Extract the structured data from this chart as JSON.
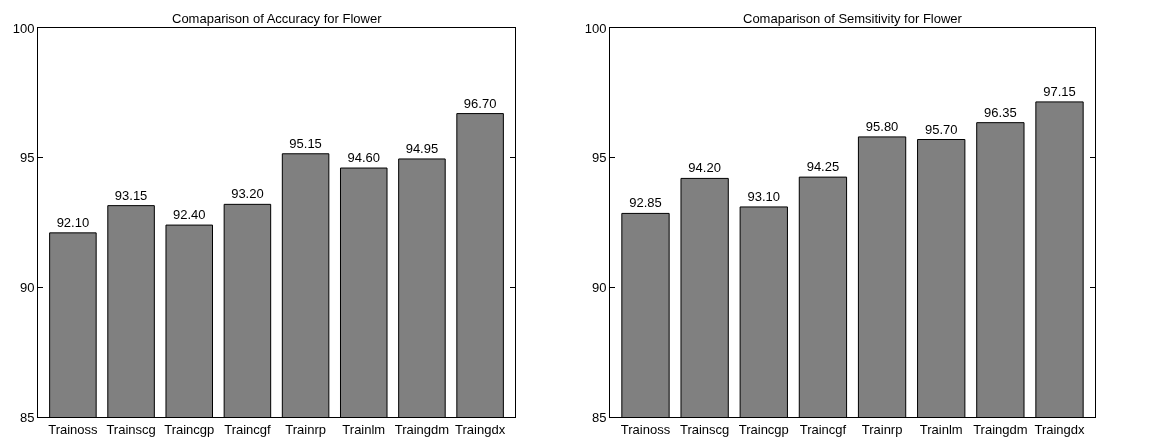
{
  "chart_data": [
    {
      "type": "bar",
      "title": "Comaparison of Accuracy for Flower",
      "categories": [
        "Trainoss",
        "Trainscg",
        "Traincgp",
        "Traincgf",
        "Trainrp",
        "Trainlm",
        "Traingdm",
        "Traingdx"
      ],
      "values": [
        92.1,
        93.15,
        92.4,
        93.2,
        95.15,
        94.6,
        94.95,
        96.7
      ],
      "value_labels": [
        "92.10",
        "93.15",
        "92.40",
        "93.20",
        "95.15",
        "94.60",
        "94.95",
        "96.70"
      ],
      "color": "#808080",
      "ylim": [
        85,
        100
      ],
      "yticks": [
        85,
        90,
        95,
        100
      ]
    },
    {
      "type": "bar",
      "title": "Comaparison of Semsitivity for Flower",
      "categories": [
        "Trainoss",
        "Trainscg",
        "Traincgp",
        "Traincgf",
        "Trainrp",
        "Trainlm",
        "Traingdm",
        "Traingdx"
      ],
      "values": [
        92.85,
        94.2,
        93.1,
        94.25,
        95.8,
        95.7,
        96.35,
        97.15
      ],
      "value_labels": [
        "92.85",
        "94.20",
        "93.10",
        "94.25",
        "95.80",
        "95.70",
        "96.35",
        "97.15"
      ],
      "color": "#808080",
      "ylim": [
        85,
        100
      ],
      "yticks": [
        85,
        90,
        95,
        100
      ]
    }
  ]
}
